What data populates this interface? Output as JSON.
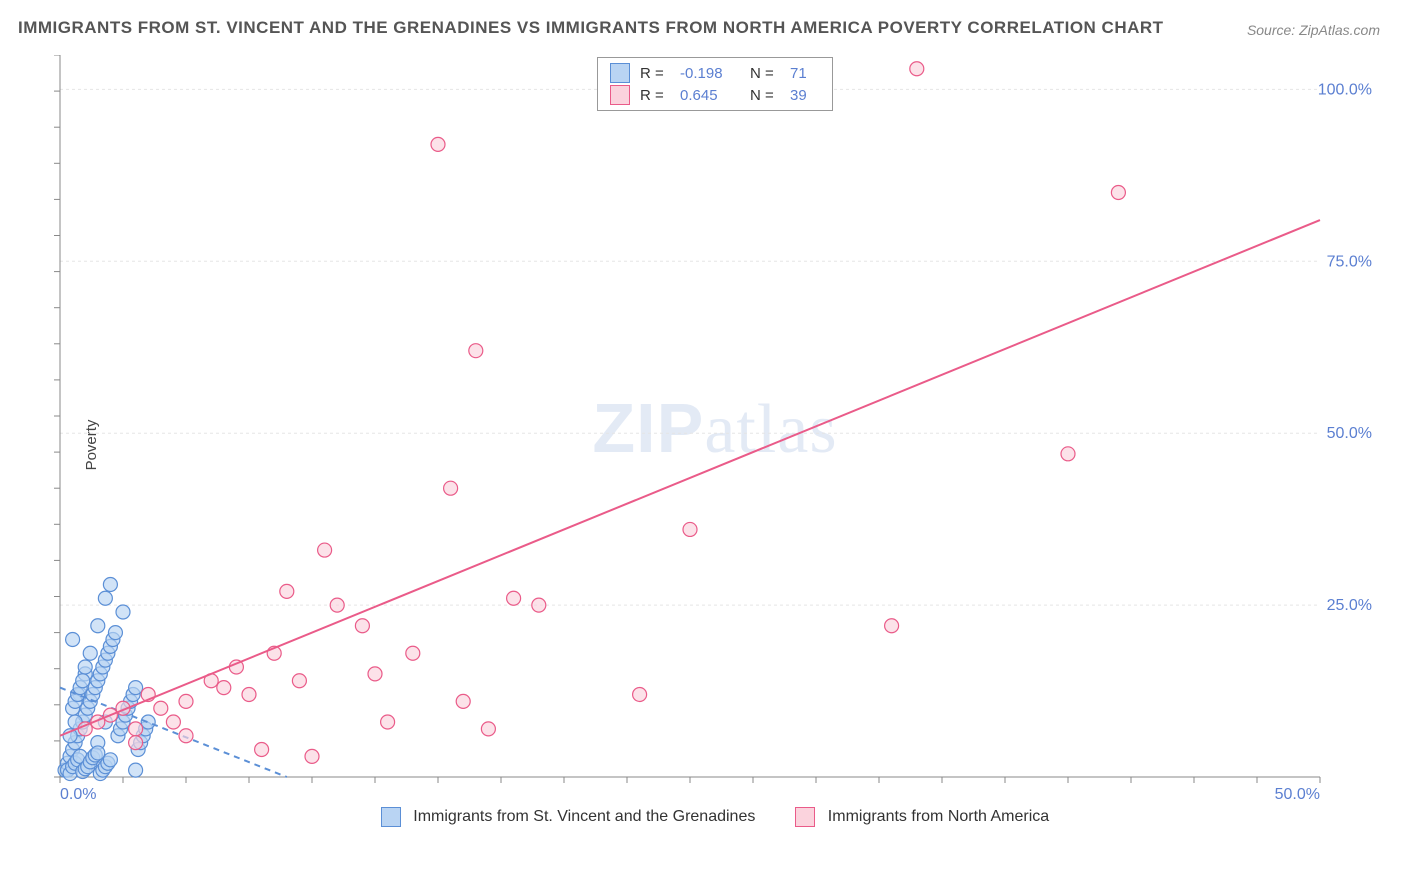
{
  "title": "IMMIGRANTS FROM ST. VINCENT AND THE GRENADINES VS IMMIGRANTS FROM NORTH AMERICA POVERTY CORRELATION CHART",
  "source": "Source: ZipAtlas.com",
  "watermark": {
    "zip": "ZIP",
    "atlas": "atlas"
  },
  "ylabel": "Poverty",
  "chart": {
    "type": "scatter",
    "xlim": [
      0,
      50
    ],
    "ylim": [
      0,
      105
    ],
    "xtick_labels": [
      "0.0%",
      "50.0%"
    ],
    "ytick_values": [
      25,
      50,
      75,
      100
    ],
    "ytick_labels": [
      "25.0%",
      "50.0%",
      "75.0%",
      "100.0%"
    ],
    "background_color": "#ffffff",
    "grid_color": "#e5e5e5",
    "axis_color": "#888888",
    "marker_radius": 7,
    "marker_stroke_width": 1.2,
    "trend_line_width": 2,
    "series": [
      {
        "name": "Immigrants from St. Vincent and the Grenadines",
        "fill": "#b9d4f3",
        "stroke": "#5b8fd6",
        "R": "-0.198",
        "N": "71",
        "trend": {
          "x1": 0,
          "y1": 13,
          "x2": 9,
          "y2": 0,
          "dashed": true
        },
        "points": [
          [
            0.2,
            1
          ],
          [
            0.3,
            2
          ],
          [
            0.4,
            3
          ],
          [
            0.5,
            4
          ],
          [
            0.5,
            20
          ],
          [
            0.6,
            5
          ],
          [
            0.7,
            6
          ],
          [
            0.8,
            7
          ],
          [
            0.8,
            12
          ],
          [
            0.9,
            8
          ],
          [
            1.0,
            9
          ],
          [
            1.0,
            15
          ],
          [
            1.1,
            10
          ],
          [
            1.2,
            11
          ],
          [
            1.2,
            18
          ],
          [
            1.3,
            12
          ],
          [
            1.4,
            13
          ],
          [
            1.5,
            14
          ],
          [
            1.5,
            5
          ],
          [
            1.6,
            15
          ],
          [
            1.7,
            16
          ],
          [
            1.8,
            17
          ],
          [
            1.8,
            8
          ],
          [
            1.9,
            18
          ],
          [
            2.0,
            19
          ],
          [
            2.0,
            28
          ],
          [
            2.1,
            20
          ],
          [
            2.2,
            21
          ],
          [
            2.3,
            6
          ],
          [
            2.4,
            7
          ],
          [
            2.5,
            8
          ],
          [
            2.5,
            24
          ],
          [
            2.6,
            9
          ],
          [
            2.7,
            10
          ],
          [
            2.8,
            11
          ],
          [
            2.9,
            12
          ],
          [
            3.0,
            13
          ],
          [
            3.0,
            1
          ],
          [
            3.1,
            4
          ],
          [
            3.2,
            5
          ],
          [
            3.3,
            6
          ],
          [
            3.4,
            7
          ],
          [
            3.5,
            8
          ],
          [
            0.3,
            1
          ],
          [
            0.4,
            0.5
          ],
          [
            0.5,
            1.5
          ],
          [
            0.6,
            2
          ],
          [
            0.7,
            2.5
          ],
          [
            0.8,
            3
          ],
          [
            0.9,
            0.8
          ],
          [
            1.0,
            1.2
          ],
          [
            1.1,
            1.5
          ],
          [
            1.2,
            2.2
          ],
          [
            1.3,
            2.8
          ],
          [
            1.4,
            3.2
          ],
          [
            1.5,
            3.5
          ],
          [
            1.6,
            0.5
          ],
          [
            1.7,
            1
          ],
          [
            1.8,
            1.5
          ],
          [
            1.9,
            2
          ],
          [
            2.0,
            2.5
          ],
          [
            0.5,
            10
          ],
          [
            0.6,
            11
          ],
          [
            0.7,
            12
          ],
          [
            0.8,
            13
          ],
          [
            0.9,
            14
          ],
          [
            1.0,
            16
          ],
          [
            1.5,
            22
          ],
          [
            1.8,
            26
          ],
          [
            0.4,
            6
          ],
          [
            0.6,
            8
          ]
        ]
      },
      {
        "name": "Immigrants from North America",
        "fill": "#fbd3dd",
        "stroke": "#ea5b89",
        "R": "0.645",
        "N": "39",
        "trend": {
          "x1": 0,
          "y1": 6,
          "x2": 50,
          "y2": 81,
          "dashed": false
        },
        "points": [
          [
            1,
            7
          ],
          [
            1.5,
            8
          ],
          [
            2,
            9
          ],
          [
            2.5,
            10
          ],
          [
            3,
            7
          ],
          [
            3.5,
            12
          ],
          [
            4,
            10
          ],
          [
            4.5,
            8
          ],
          [
            5,
            11
          ],
          [
            6,
            14
          ],
          [
            6.5,
            13
          ],
          [
            7,
            16
          ],
          [
            7.5,
            12
          ],
          [
            8,
            4
          ],
          [
            8.5,
            18
          ],
          [
            9,
            27
          ],
          [
            9.5,
            14
          ],
          [
            10,
            3
          ],
          [
            10.5,
            33
          ],
          [
            11,
            25
          ],
          [
            12,
            22
          ],
          [
            12.5,
            15
          ],
          [
            13,
            8
          ],
          [
            14,
            18
          ],
          [
            15,
            92
          ],
          [
            15.5,
            42
          ],
          [
            16,
            11
          ],
          [
            16.5,
            62
          ],
          [
            17,
            7
          ],
          [
            18,
            26
          ],
          [
            19,
            25
          ],
          [
            23,
            12
          ],
          [
            25,
            36
          ],
          [
            33,
            22
          ],
          [
            34,
            103
          ],
          [
            40,
            47
          ],
          [
            42,
            85
          ],
          [
            3,
            5
          ],
          [
            5,
            6
          ]
        ]
      }
    ]
  },
  "legend": {
    "s1_label": "Immigrants from St. Vincent and the Grenadines",
    "s2_label": "Immigrants from North America"
  }
}
